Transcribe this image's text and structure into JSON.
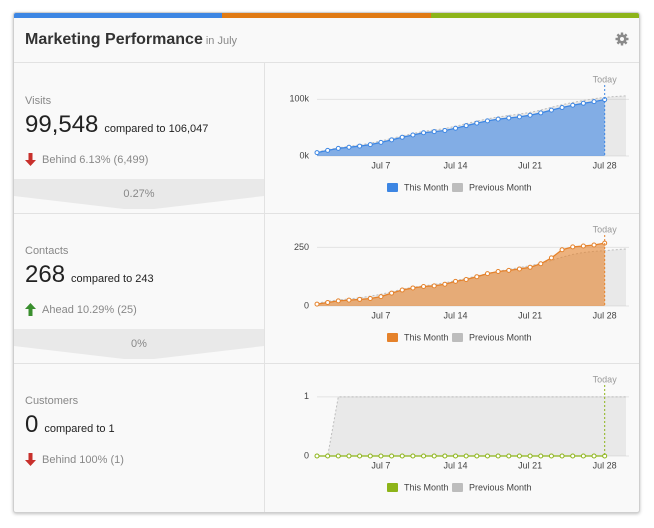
{
  "header": {
    "title": "Marketing Performance",
    "subtitle": "in July"
  },
  "metrics": [
    {
      "label": "Visits",
      "value": "99,548",
      "comparison": "compared to 106,047",
      "status": "Behind 6.13% (6,499)",
      "direction": "down",
      "funnel": "0.27%"
    },
    {
      "label": "Contacts",
      "value": "268",
      "comparison": "compared to 243",
      "status": "Ahead 10.29% (25)",
      "direction": "up",
      "funnel": "0%"
    },
    {
      "label": "Customers",
      "value": "0",
      "comparison": "compared to 1",
      "status": "Behind 100% (1)",
      "direction": "down"
    }
  ],
  "chart_data": [
    {
      "type": "area",
      "annotation": "Today",
      "categories": [
        null,
        null,
        null,
        null,
        null,
        null,
        "Jul 7",
        null,
        null,
        null,
        null,
        null,
        null,
        "Jul 14",
        null,
        null,
        null,
        null,
        null,
        null,
        "Jul 21",
        null,
        null,
        null,
        null,
        null,
        null,
        "Jul 28",
        null,
        null
      ],
      "series": [
        {
          "name": "This Month",
          "color": "#3d86e3",
          "markers": true,
          "values": [
            6000,
            10000,
            13500,
            15500,
            17500,
            20000,
            24000,
            28500,
            33000,
            37000,
            41000,
            43000,
            45000,
            49000,
            53500,
            58000,
            62000,
            65000,
            67000,
            69000,
            72000,
            76000,
            81000,
            85500,
            89500,
            93000,
            96000,
            99548,
            null,
            null
          ]
        },
        {
          "name": "Previous Month",
          "color": "#bdbdbd",
          "dashed": true,
          "values": [
            7000,
            11000,
            14500,
            17000,
            19500,
            22500,
            26500,
            31000,
            35500,
            39500,
            43500,
            46000,
            48500,
            52500,
            57000,
            61500,
            65500,
            69000,
            71500,
            74000,
            77000,
            81000,
            86000,
            90500,
            94500,
            98000,
            101000,
            103500,
            105000,
            106047
          ]
        }
      ],
      "ylim": [
        0,
        120000
      ],
      "yticks": [
        {
          "value": 0,
          "label": "0k"
        },
        {
          "value": 100000,
          "label": "100k"
        }
      ],
      "grid": true
    },
    {
      "type": "area",
      "annotation": "Today",
      "categories": [
        null,
        null,
        null,
        null,
        null,
        null,
        "Jul 7",
        null,
        null,
        null,
        null,
        null,
        null,
        "Jul 14",
        null,
        null,
        null,
        null,
        null,
        null,
        "Jul 21",
        null,
        null,
        null,
        null,
        null,
        null,
        "Jul 28",
        null,
        null
      ],
      "series": [
        {
          "name": "This Month",
          "color": "#e5822b",
          "markers": true,
          "values": [
            8,
            15,
            22,
            25,
            28,
            32,
            40,
            55,
            68,
            77,
            83,
            86,
            93,
            105,
            113,
            125,
            138,
            147,
            152,
            158,
            165,
            180,
            205,
            240,
            252,
            256,
            260,
            268,
            null,
            null
          ]
        },
        {
          "name": "Previous Month",
          "color": "#bdbdbd",
          "dashed": true,
          "values": [
            12,
            20,
            26,
            30,
            35,
            42,
            50,
            60,
            72,
            80,
            86,
            92,
            99,
            108,
            118,
            128,
            138,
            148,
            156,
            164,
            172,
            182,
            194,
            208,
            220,
            228,
            233,
            236,
            240,
            243
          ]
        }
      ],
      "ylim": [
        0,
        290
      ],
      "yticks": [
        0,
        250
      ],
      "grid": true
    },
    {
      "type": "area",
      "annotation": "Today",
      "categories": [
        null,
        null,
        null,
        null,
        null,
        null,
        "Jul 7",
        null,
        null,
        null,
        null,
        null,
        null,
        "Jul 14",
        null,
        null,
        null,
        null,
        null,
        null,
        "Jul 21",
        null,
        null,
        null,
        null,
        null,
        null,
        "Jul 28",
        null,
        null
      ],
      "series": [
        {
          "name": "This Month",
          "color": "#8db419",
          "markers": true,
          "values": [
            0,
            0,
            0,
            0,
            0,
            0,
            0,
            0,
            0,
            0,
            0,
            0,
            0,
            0,
            0,
            0,
            0,
            0,
            0,
            0,
            0,
            0,
            0,
            0,
            0,
            0,
            0,
            0,
            null,
            null
          ]
        },
        {
          "name": "Previous Month",
          "color": "#bdbdbd",
          "dashed": true,
          "values": [
            0,
            0,
            1,
            1,
            1,
            1,
            1,
            1,
            1,
            1,
            1,
            1,
            1,
            1,
            1,
            1,
            1,
            1,
            1,
            1,
            1,
            1,
            1,
            1,
            1,
            1,
            1,
            1,
            1,
            1
          ]
        }
      ],
      "ylim": [
        0,
        1.15
      ],
      "yticks": [
        0,
        1
      ],
      "grid": true
    }
  ]
}
